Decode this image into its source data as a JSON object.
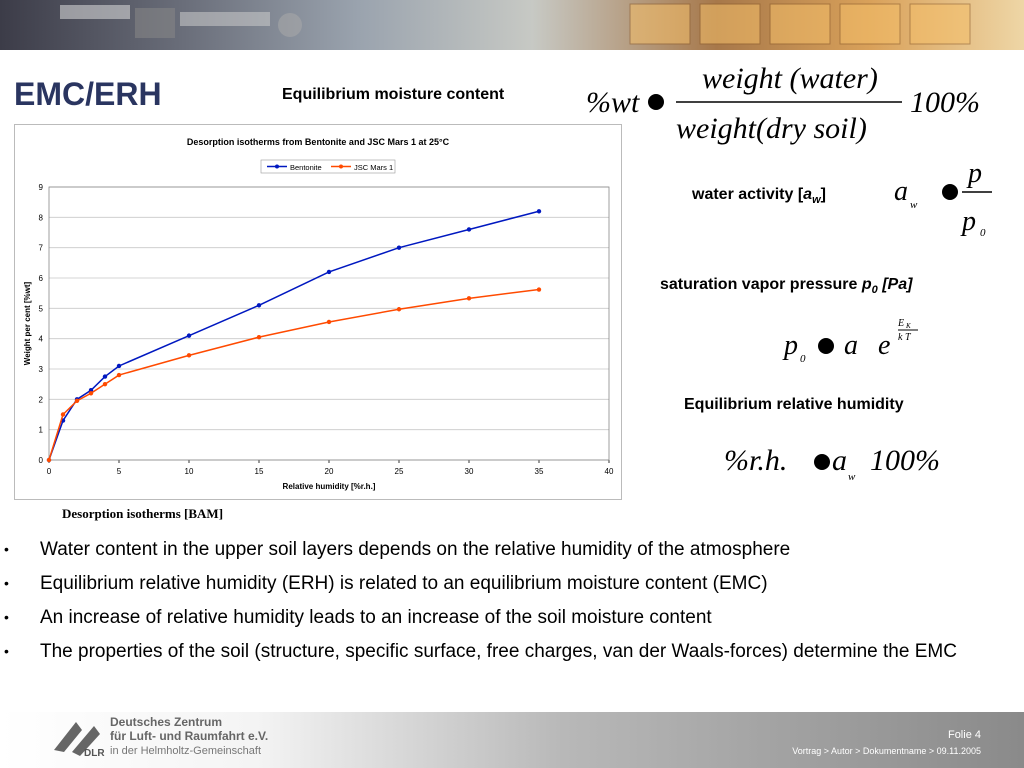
{
  "slide": {
    "title": "EMC/ERH",
    "emc_label": "Equilibrium moisture content",
    "emc_formula": {
      "lhs": "%wt",
      "num": "weight (water)",
      "den": "weight(dry soil)",
      "rhs": "100%"
    },
    "aw_label_prefix": "water activity [",
    "aw_label_var": "a",
    "aw_label_sub": "w",
    "aw_label_suffix": "]",
    "aw_formula": {
      "lhs": "a",
      "lhs_sub": "w",
      "num": "p",
      "den": "p",
      "den_sub": "0"
    },
    "svp_label_prefix": "saturation vapor pressure ",
    "svp_label_var": "p",
    "svp_label_sub": "0",
    "svp_label_suffix": " [Pa]",
    "svp_formula": {
      "lhs": "p",
      "lhs_sub": "0",
      "a": "a",
      "e": "e",
      "exp_num": "E",
      "exp_num_sub": "K",
      "exp_den": "k T"
    },
    "erh_label": "Equilibrium relative humidity",
    "erh_formula": {
      "lhs": "%r.h.",
      "a": "a",
      "a_sub": "w",
      "rhs": "100%"
    },
    "caption": "Desorption isotherms [BAM]",
    "bullets": [
      "Water content in the upper  soil layers depends on the relative humidity of the atmosphere",
      "Equilibrium relative humidity (ERH) is related to an equilibrium moisture content (EMC)",
      "An increase of relative humidity leads to an increase of the soil moisture content",
      "The properties of the soil (structure, specific surface, free charges, van der Waals-forces) determine the EMC"
    ]
  },
  "footer": {
    "org_line1": "Deutsches Zentrum",
    "org_line2": "für Luft- und Raumfahrt e.V.",
    "org_line3": "in der Helmholtz-Gemeinschaft",
    "logo_text": "DLR",
    "folie": "Folie 4",
    "path": "Vortrag > Autor > Dokumentname > 09.11.2005"
  },
  "colors": {
    "title": "#2a3560",
    "bentonite": "#0018c0",
    "jsc": "#ff4a00"
  },
  "chart_data": {
    "type": "line",
    "title": "Desorption isotherms from Bentonite and JSC Mars 1 at 25°C",
    "xlabel": "Relative humidity [%r.h.]",
    "ylabel": "Weight per cent [%wt]",
    "xlim": [
      0,
      40
    ],
    "ylim": [
      0,
      9
    ],
    "xticks": [
      0,
      5,
      10,
      15,
      20,
      25,
      30,
      35,
      40
    ],
    "yticks": [
      0,
      1,
      2,
      3,
      4,
      5,
      6,
      7,
      8,
      9
    ],
    "grid": true,
    "legend": "top-center",
    "series": [
      {
        "name": "Bentonite",
        "color": "#0018c0",
        "x": [
          0,
          1,
          2,
          3,
          4,
          5,
          10,
          15,
          20,
          25,
          30,
          35
        ],
        "y": [
          0,
          1.3,
          2.0,
          2.3,
          2.75,
          3.1,
          4.1,
          5.1,
          6.2,
          7.0,
          7.6,
          8.2
        ]
      },
      {
        "name": "JSC Mars 1",
        "color": "#ff4a00",
        "x": [
          0,
          1,
          2,
          3,
          4,
          5,
          10,
          15,
          20,
          25,
          30,
          35
        ],
        "y": [
          0,
          1.5,
          1.95,
          2.2,
          2.5,
          2.8,
          3.45,
          4.05,
          4.55,
          4.97,
          5.33,
          5.62
        ]
      }
    ]
  }
}
